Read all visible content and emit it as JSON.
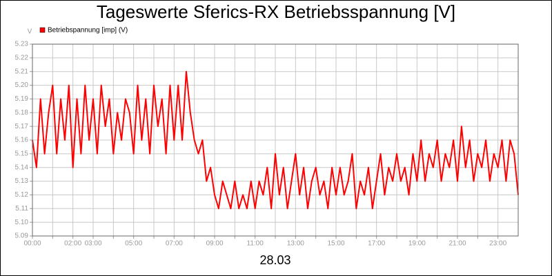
{
  "chart_data": {
    "type": "line",
    "title": "Tageswerte Sferics-RX Betriebsspannung [V]",
    "y_label": "V",
    "x_label": "28.03",
    "xlim": [
      0,
      24
    ],
    "ylim": [
      5.09,
      5.23
    ],
    "yticks": [
      5.09,
      {
        "value": 5.1,
        "label": "5.10"
      },
      5.11,
      5.12,
      5.13,
      5.14,
      5.15,
      5.16,
      5.17,
      5.18,
      5.19,
      {
        "value": 5.2,
        "label": "5.20"
      },
      5.21,
      5.22,
      5.23
    ],
    "xticks": [
      {
        "value": 0,
        "label": "00:00"
      },
      {
        "value": 2,
        "label": "02:00"
      },
      {
        "value": 3,
        "label": "03:00"
      },
      {
        "value": 5,
        "label": "05:00"
      },
      {
        "value": 7,
        "label": "07:00"
      },
      {
        "value": 9,
        "label": "09:00"
      },
      {
        "value": 11,
        "label": "11:00"
      },
      {
        "value": 13,
        "label": "13:00"
      },
      {
        "value": 15,
        "label": "15:00"
      },
      {
        "value": 17,
        "label": "17:00"
      },
      {
        "value": 19,
        "label": "19:00"
      },
      {
        "value": 21,
        "label": "21:00"
      },
      {
        "value": 23,
        "label": "23:00"
      }
    ],
    "xminorticks": [
      1,
      4,
      6,
      8,
      10,
      12,
      14,
      16,
      18,
      20,
      22
    ],
    "grid": true,
    "legend": "top-left",
    "x": [
      0,
      0.2,
      0.4,
      0.6,
      0.8,
      1,
      1.2,
      1.4,
      1.6,
      1.8,
      2,
      2.2,
      2.4,
      2.6,
      2.8,
      3,
      3.2,
      3.4,
      3.6,
      3.8,
      4,
      4.2,
      4.4,
      4.6,
      4.8,
      5,
      5.2,
      5.4,
      5.6,
      5.8,
      6,
      6.2,
      6.4,
      6.6,
      6.8,
      7,
      7.2,
      7.4,
      7.6,
      7.8,
      8,
      8.2,
      8.4,
      8.6,
      8.8,
      9,
      9.2,
      9.4,
      9.6,
      9.8,
      10,
      10.2,
      10.4,
      10.6,
      10.8,
      11,
      11.2,
      11.4,
      11.6,
      11.8,
      12,
      12.2,
      12.4,
      12.6,
      12.8,
      13,
      13.2,
      13.4,
      13.6,
      13.8,
      14,
      14.2,
      14.4,
      14.6,
      14.8,
      15,
      15.2,
      15.4,
      15.6,
      15.8,
      16,
      16.2,
      16.4,
      16.6,
      16.8,
      17,
      17.2,
      17.4,
      17.6,
      17.8,
      18,
      18.2,
      18.4,
      18.6,
      18.8,
      19,
      19.2,
      19.4,
      19.6,
      19.8,
      20,
      20.2,
      20.4,
      20.6,
      20.8,
      21,
      21.2,
      21.4,
      21.6,
      21.8,
      22,
      22.2,
      22.4,
      22.6,
      22.8,
      23,
      23.2,
      23.4,
      23.6,
      23.8,
      24
    ],
    "series": [
      {
        "name": "Betriebspannung [imp] (V)",
        "color": "#ff0000",
        "values": [
          5.16,
          5.14,
          5.19,
          5.15,
          5.18,
          5.2,
          5.15,
          5.19,
          5.16,
          5.2,
          5.14,
          5.19,
          5.15,
          5.2,
          5.16,
          5.19,
          5.15,
          5.2,
          5.17,
          5.19,
          5.15,
          5.18,
          5.16,
          5.19,
          5.18,
          5.15,
          5.2,
          5.16,
          5.19,
          5.15,
          5.2,
          5.17,
          5.19,
          5.15,
          5.2,
          5.16,
          5.2,
          5.16,
          5.21,
          5.18,
          5.16,
          5.15,
          5.16,
          5.13,
          5.14,
          5.12,
          5.11,
          5.13,
          5.12,
          5.11,
          5.13,
          5.11,
          5.12,
          5.11,
          5.13,
          5.11,
          5.13,
          5.12,
          5.14,
          5.11,
          5.15,
          5.12,
          5.14,
          5.11,
          5.13,
          5.15,
          5.12,
          5.14,
          5.11,
          5.13,
          5.14,
          5.12,
          5.13,
          5.11,
          5.14,
          5.12,
          5.14,
          5.12,
          5.13,
          5.15,
          5.11,
          5.13,
          5.12,
          5.14,
          5.11,
          5.13,
          5.15,
          5.12,
          5.14,
          5.13,
          5.15,
          5.13,
          5.14,
          5.12,
          5.15,
          5.13,
          5.16,
          5.13,
          5.15,
          5.14,
          5.16,
          5.13,
          5.15,
          5.14,
          5.16,
          5.13,
          5.17,
          5.14,
          5.16,
          5.13,
          5.15,
          5.14,
          5.16,
          5.13,
          5.15,
          5.14,
          5.16,
          5.13,
          5.16,
          5.15,
          5.12
        ]
      }
    ]
  }
}
